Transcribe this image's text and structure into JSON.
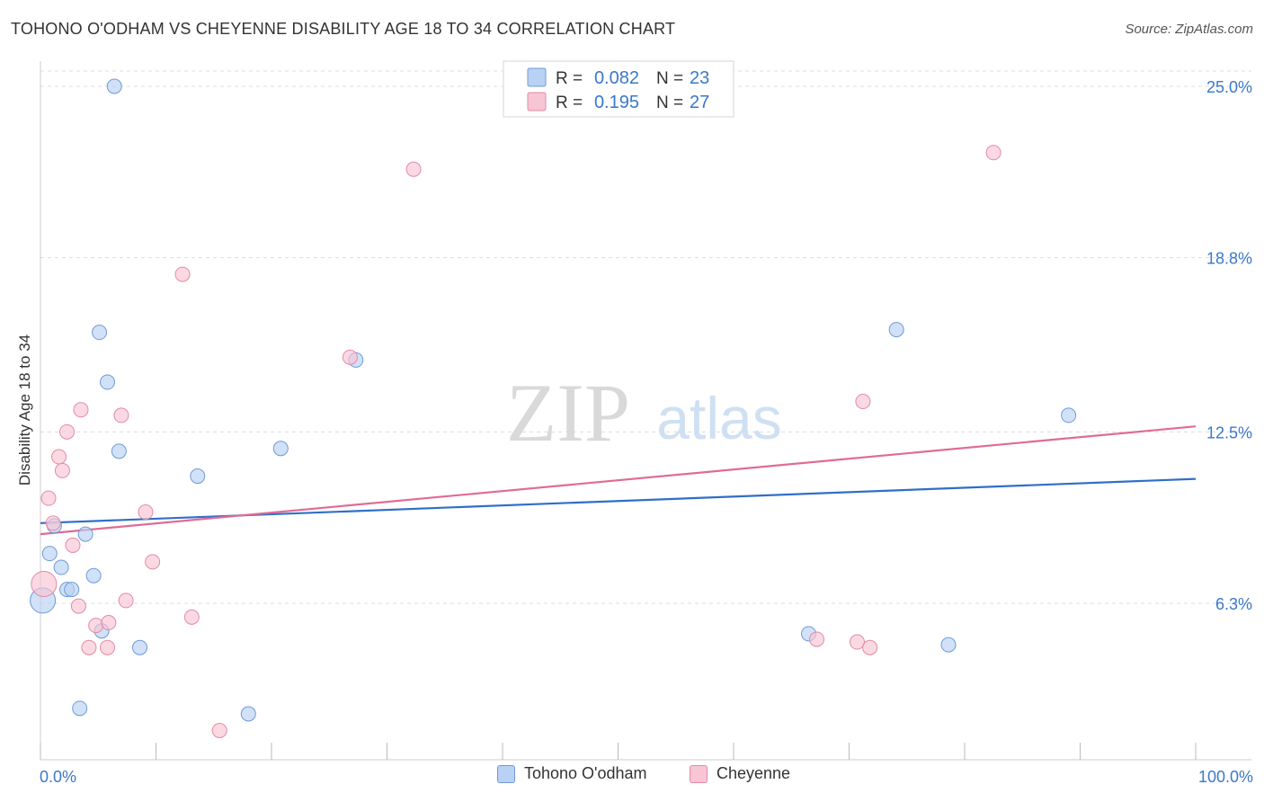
{
  "header": {
    "title": "TOHONO O'ODHAM VS CHEYENNE DISABILITY AGE 18 TO 34 CORRELATION CHART",
    "source": "Source: ZipAtlas.com"
  },
  "watermark": {
    "zip": "ZIP",
    "atlas": "atlas"
  },
  "stats_legend": {
    "rows": [
      {
        "r_label": "R =",
        "r_value": "0.082",
        "n_label": "N =",
        "n_value": "23"
      },
      {
        "r_label": "R =",
        "r_value": "0.195",
        "n_label": "N =",
        "n_value": "27"
      }
    ]
  },
  "colors": {
    "blue_fill": "#b9d1f3",
    "blue_stroke": "#6f9ad8",
    "blue_line": "#2f6fc9",
    "pink_fill": "#f7c5d4",
    "pink_stroke": "#e38aa6",
    "pink_line": "#e06b96",
    "accent_text": "#3a78c9",
    "grid": "#dddddd"
  },
  "chart_data": {
    "type": "scatter",
    "title": "TOHONO O'ODHAM VS CHEYENNE DISABILITY AGE 18 TO 34 CORRELATION CHART",
    "xlabel": "",
    "ylabel": "Disability Age 18 to 34",
    "xlim": [
      0,
      100
    ],
    "ylim": [
      0,
      25.5
    ],
    "x_tick_labels": [
      "0.0%",
      "100.0%"
    ],
    "y_ticks": [
      6.3,
      12.5,
      18.8,
      25.0
    ],
    "y_tick_labels": [
      "6.3%",
      "12.5%",
      "18.8%",
      "25.0%"
    ],
    "grid": "horizontal dashed",
    "legend_placement": "bottom",
    "series": [
      {
        "name": "Tohono O'odham",
        "color": "#b9d1f3",
        "R": 0.082,
        "N": 23,
        "trend": {
          "x": [
            0,
            100
          ],
          "y": [
            9.2,
            10.8
          ]
        },
        "points": [
          {
            "x": 6.4,
            "y": 25.0
          },
          {
            "x": 5.1,
            "y": 16.1
          },
          {
            "x": 5.8,
            "y": 14.3
          },
          {
            "x": 27.3,
            "y": 15.1
          },
          {
            "x": 6.8,
            "y": 11.8
          },
          {
            "x": 20.8,
            "y": 11.9
          },
          {
            "x": 13.6,
            "y": 10.9
          },
          {
            "x": 1.2,
            "y": 9.1
          },
          {
            "x": 3.9,
            "y": 8.8
          },
          {
            "x": 0.8,
            "y": 8.1
          },
          {
            "x": 1.8,
            "y": 7.6
          },
          {
            "x": 4.6,
            "y": 7.3
          },
          {
            "x": 2.3,
            "y": 6.8
          },
          {
            "x": 2.7,
            "y": 6.8
          },
          {
            "x": 0.2,
            "y": 6.4
          },
          {
            "x": 5.3,
            "y": 5.3
          },
          {
            "x": 8.6,
            "y": 4.7
          },
          {
            "x": 3.4,
            "y": 2.5
          },
          {
            "x": 18.0,
            "y": 2.3
          },
          {
            "x": 74.1,
            "y": 16.2
          },
          {
            "x": 89.0,
            "y": 13.1
          },
          {
            "x": 66.5,
            "y": 5.2
          },
          {
            "x": 78.6,
            "y": 4.8
          }
        ]
      },
      {
        "name": "Cheyenne",
        "color": "#f7c5d4",
        "R": 0.195,
        "N": 27,
        "trend": {
          "x": [
            0,
            100
          ],
          "y": [
            8.8,
            12.7
          ]
        },
        "points": [
          {
            "x": 32.3,
            "y": 22.0
          },
          {
            "x": 82.5,
            "y": 22.6
          },
          {
            "x": 12.3,
            "y": 18.2
          },
          {
            "x": 26.8,
            "y": 15.2
          },
          {
            "x": 71.2,
            "y": 13.6
          },
          {
            "x": 3.5,
            "y": 13.3
          },
          {
            "x": 7.0,
            "y": 13.1
          },
          {
            "x": 2.3,
            "y": 12.5
          },
          {
            "x": 1.6,
            "y": 11.6
          },
          {
            "x": 1.9,
            "y": 11.1
          },
          {
            "x": 0.7,
            "y": 10.1
          },
          {
            "x": 9.1,
            "y": 9.6
          },
          {
            "x": 1.1,
            "y": 9.2
          },
          {
            "x": 2.8,
            "y": 8.4
          },
          {
            "x": 9.7,
            "y": 7.8
          },
          {
            "x": 0.3,
            "y": 7.0
          },
          {
            "x": 7.4,
            "y": 6.4
          },
          {
            "x": 3.3,
            "y": 6.2
          },
          {
            "x": 13.1,
            "y": 5.8
          },
          {
            "x": 4.8,
            "y": 5.5
          },
          {
            "x": 5.9,
            "y": 5.6
          },
          {
            "x": 4.2,
            "y": 4.7
          },
          {
            "x": 5.8,
            "y": 4.7
          },
          {
            "x": 67.2,
            "y": 5.0
          },
          {
            "x": 70.7,
            "y": 4.9
          },
          {
            "x": 71.8,
            "y": 4.7
          },
          {
            "x": 15.5,
            "y": 1.7
          }
        ]
      }
    ]
  }
}
